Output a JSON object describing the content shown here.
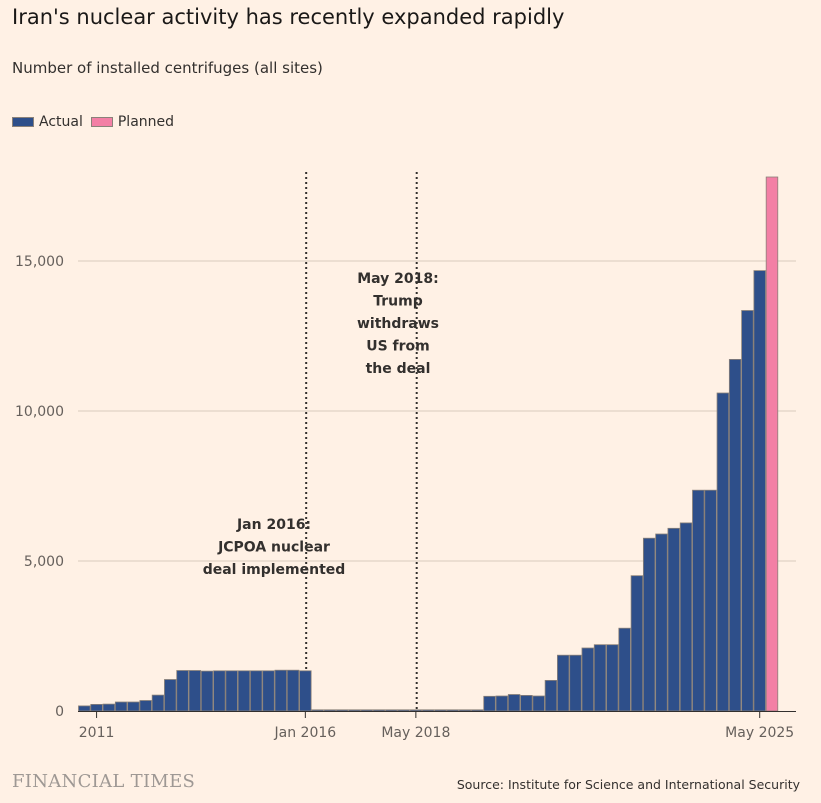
{
  "title": "Iran's nuclear activity has recently expanded rapidly",
  "subtitle": "Number of installed centrifuges (all sites)",
  "legend": [
    {
      "label": "Actual",
      "color": "#2E4F8A"
    },
    {
      "label": "Planned",
      "color": "#F37FA5"
    }
  ],
  "footer": {
    "logo": "FINANCIAL TIMES",
    "source": "Source: Institute for Science and International Security"
  },
  "chart_data": {
    "type": "bar",
    "ylim": [
      0,
      18500
    ],
    "yticks": [
      0,
      5000,
      10000,
      15000
    ],
    "ytick_labels": [
      "0",
      "5,000",
      "10,000",
      "15,000"
    ],
    "grid": true,
    "x_tick_labels": [
      {
        "label": "2011",
        "bar_index": 1
      },
      {
        "label": "Jan 2016",
        "bar_index": 18
      },
      {
        "label": "May 2018",
        "bar_index": 27
      },
      {
        "label": "May 2025",
        "bar_index": 55
      }
    ],
    "series": [
      {
        "name": "Actual",
        "color": "#2E4F8A",
        "values": [
          170,
          220,
          230,
          300,
          300,
          350,
          530,
          1050,
          1350,
          1350,
          1330,
          1340,
          1340,
          1340,
          1340,
          1340,
          1360,
          1360,
          1340,
          40,
          40,
          40,
          40,
          40,
          40,
          40,
          40,
          40,
          40,
          40,
          40,
          40,
          40,
          490,
          500,
          550,
          520,
          500,
          1020,
          1860,
          1860,
          2100,
          2210,
          2210,
          2760,
          4510,
          5760,
          5900,
          6090,
          6270,
          7360,
          7360,
          10600,
          11720,
          13350,
          14680
        ]
      },
      {
        "name": "Planned",
        "color": "#F37FA5",
        "bar_index": 56,
        "values": [
          17800
        ]
      }
    ],
    "annotations": [
      {
        "bar_index": 18.5,
        "lines": [
          "Jan 2016:",
          "JCPOA nuclear",
          "deal implemented"
        ]
      },
      {
        "bar_index": 27.5,
        "lines": [
          "May 2018:",
          "Trump",
          "withdraws",
          "US from",
          "the deal"
        ]
      }
    ]
  }
}
